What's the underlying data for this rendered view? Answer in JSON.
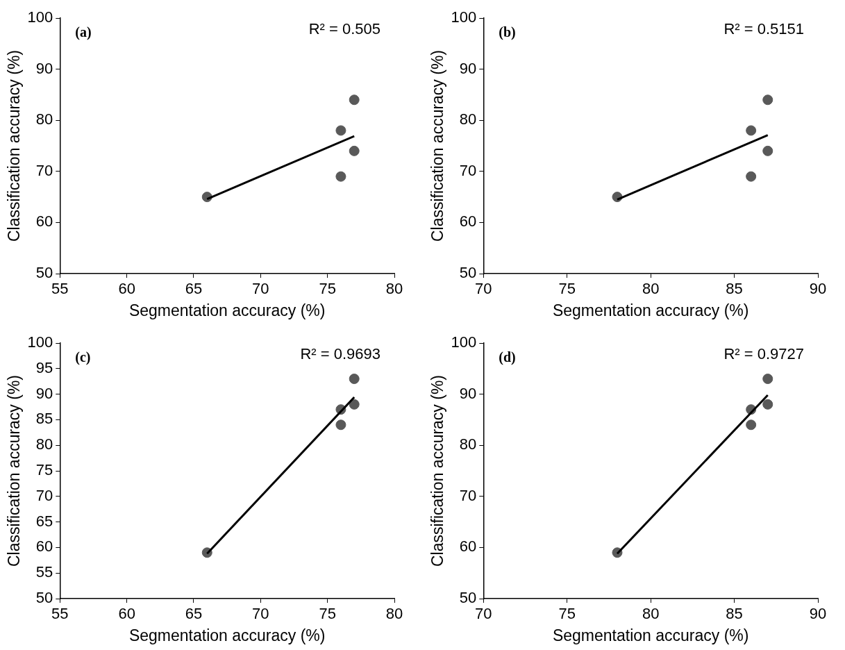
{
  "chart_data": [
    {
      "type": "scatter",
      "xlabel": "Segmentation accuracy (%)",
      "ylabel": "Classification accuracy (%)",
      "xlim": [
        55,
        80
      ],
      "xticks": [
        55,
        60,
        65,
        70,
        75,
        80
      ],
      "ylim": [
        50,
        100
      ],
      "yticks": [
        50,
        60,
        70,
        80,
        90,
        100
      ],
      "grid": false,
      "legend": false,
      "marker": "circle",
      "annotations": [
        "(a)",
        "R² = 0.505"
      ],
      "series": [
        {
          "color": "#595959",
          "x": [
            66,
            76,
            76,
            77,
            77
          ],
          "values": [
            65,
            78,
            69,
            84,
            74
          ]
        },
        {
          "type": "line",
          "color": "#000000",
          "marker": "none",
          "x": [
            66,
            77
          ],
          "values": [
            64.6,
            76.9
          ]
        }
      ]
    },
    {
      "type": "scatter",
      "xlabel": "Segmentation accuracy (%)",
      "ylabel": "Classification accuracy (%)",
      "xlim": [
        70,
        90
      ],
      "xticks": [
        70,
        75,
        80,
        85,
        90
      ],
      "ylim": [
        50,
        100
      ],
      "yticks": [
        50,
        60,
        70,
        80,
        90,
        100
      ],
      "grid": false,
      "legend": false,
      "marker": "circle",
      "annotations": [
        "(b)",
        "R² = 0.5151"
      ],
      "series": [
        {
          "color": "#595959",
          "x": [
            78,
            86,
            86,
            87,
            87
          ],
          "values": [
            65,
            78,
            69,
            84,
            74
          ]
        },
        {
          "type": "line",
          "color": "#000000",
          "marker": "none",
          "x": [
            78,
            87
          ],
          "values": [
            64.5,
            77.1
          ]
        }
      ]
    },
    {
      "type": "scatter",
      "xlabel": "Segmentation accuracy (%)",
      "ylabel": "Classification accuracy (%)",
      "xlim": [
        55,
        80
      ],
      "xticks": [
        55,
        60,
        65,
        70,
        75,
        80
      ],
      "ylim": [
        50,
        100
      ],
      "yticks": [
        50,
        55,
        60,
        65,
        70,
        75,
        80,
        85,
        90,
        95,
        100
      ],
      "grid": false,
      "legend": false,
      "marker": "circle",
      "annotations": [
        "(c)",
        "R² = 0.9693"
      ],
      "series": [
        {
          "color": "#595959",
          "x": [
            66,
            76,
            76,
            77,
            77
          ],
          "values": [
            59,
            87,
            84,
            93,
            88
          ]
        },
        {
          "type": "line",
          "color": "#000000",
          "marker": "none",
          "x": [
            66,
            77
          ],
          "values": [
            58.8,
            89.4
          ]
        }
      ]
    },
    {
      "type": "scatter",
      "xlabel": "Segmentation accuracy (%)",
      "ylabel": "Classification accuracy (%)",
      "xlim": [
        70,
        90
      ],
      "xticks": [
        70,
        75,
        80,
        85,
        90
      ],
      "ylim": [
        50,
        100
      ],
      "yticks": [
        50,
        60,
        70,
        80,
        90,
        100
      ],
      "grid": false,
      "legend": false,
      "marker": "circle",
      "annotations": [
        "(d)",
        "R² = 0.9727"
      ],
      "series": [
        {
          "color": "#595959",
          "x": [
            78,
            86,
            86,
            87,
            87
          ],
          "values": [
            59,
            87,
            84,
            93,
            88
          ]
        },
        {
          "type": "line",
          "color": "#000000",
          "marker": "none",
          "x": [
            78,
            87
          ],
          "values": [
            58.8,
            89.8
          ]
        }
      ]
    }
  ]
}
